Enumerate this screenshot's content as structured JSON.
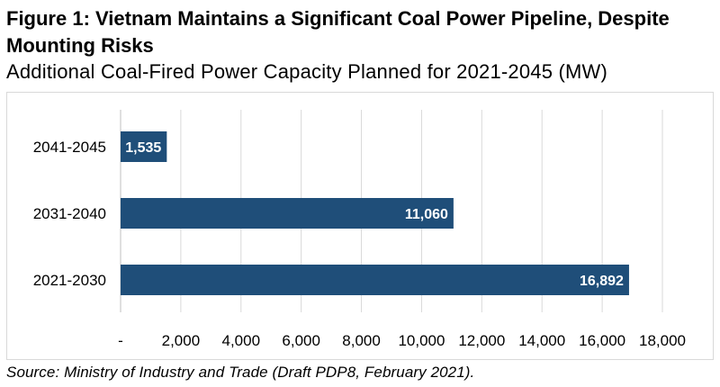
{
  "figure": {
    "title": "Figure 1: Vietnam Maintains a Significant Coal Power Pipeline, Despite Mounting Risks",
    "subtitle": "Additional Coal-Fired Power Capacity Planned for 2021-2045 (MW)",
    "source": "Source: Ministry of Industry and Trade (Draft PDP8, February 2021)."
  },
  "colors": {
    "bar": "#1f4e79",
    "grid": "#d9d9d9",
    "axis": "#bfbfbf",
    "label": "#ffffff"
  },
  "chart_data": {
    "type": "bar",
    "orientation": "horizontal",
    "categories": [
      "2041-2045",
      "2031-2040",
      "2021-2030"
    ],
    "values": [
      1535,
      11060,
      16892
    ],
    "value_labels": [
      "1,535",
      "11,060",
      "16,892"
    ],
    "xlim": [
      0,
      18000
    ],
    "x_ticks": [
      0,
      2000,
      4000,
      6000,
      8000,
      10000,
      12000,
      14000,
      16000,
      18000
    ],
    "x_tick_labels": [
      "-",
      "2,000",
      "4,000",
      "6,000",
      "8,000",
      "10,000",
      "12,000",
      "14,000",
      "16,000",
      "18,000"
    ],
    "grid": true,
    "legend": false
  }
}
